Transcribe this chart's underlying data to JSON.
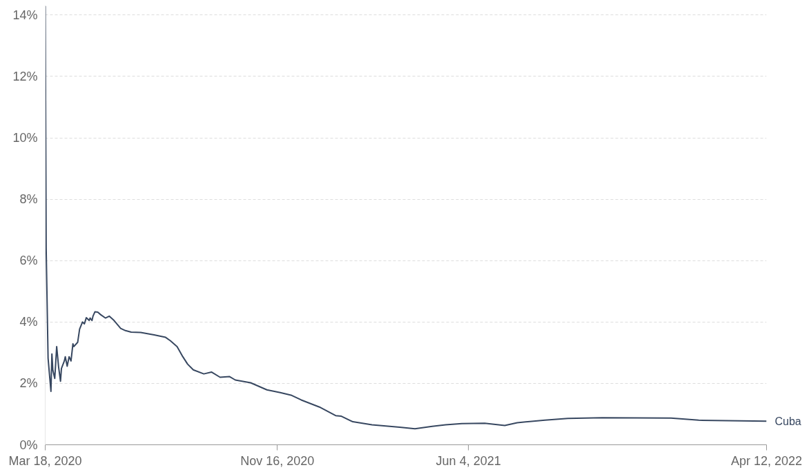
{
  "chart_data": {
    "type": "line",
    "xlim": [
      "2020-03-18",
      "2022-04-12"
    ],
    "ylim": [
      0,
      14.3
    ],
    "xticks": [
      {
        "value": "2020-03-18",
        "label": "Mar 18, 2020"
      },
      {
        "value": "2020-11-16",
        "label": "Nov 16, 2020"
      },
      {
        "value": "2021-06-04",
        "label": "Jun 4, 2021"
      },
      {
        "value": "2022-04-12",
        "label": "Apr 12, 2022"
      }
    ],
    "yticks": [
      {
        "value": 0,
        "label": "0%"
      },
      {
        "value": 2,
        "label": "2%"
      },
      {
        "value": 4,
        "label": "4%"
      },
      {
        "value": 6,
        "label": "6%"
      },
      {
        "value": 8,
        "label": "8%"
      },
      {
        "value": 10,
        "label": "10%"
      },
      {
        "value": 12,
        "label": "12%"
      },
      {
        "value": 14,
        "label": "14%"
      }
    ],
    "grid": "y",
    "marker": "none",
    "line_style": "solid",
    "x": [
      "2020-03-18",
      "2020-03-19",
      "2020-03-21",
      "2020-03-24",
      "2020-03-25",
      "2020-03-26",
      "2020-03-28",
      "2020-03-30",
      "2020-04-01",
      "2020-04-03",
      "2020-04-04",
      "2020-04-07",
      "2020-04-08",
      "2020-04-10",
      "2020-04-12",
      "2020-04-14",
      "2020-04-16",
      "2020-04-17",
      "2020-04-21",
      "2020-04-23",
      "2020-04-26",
      "2020-04-28",
      "2020-04-30",
      "2020-05-03",
      "2020-05-04",
      "2020-05-06",
      "2020-05-07",
      "2020-05-09",
      "2020-05-12",
      "2020-05-15",
      "2020-05-20",
      "2020-05-24",
      "2020-05-29",
      "2020-06-05",
      "2020-06-10",
      "2020-06-16",
      "2020-06-26",
      "2020-07-10",
      "2020-07-22",
      "2020-07-27",
      "2020-08-03",
      "2020-08-09",
      "2020-08-14",
      "2020-08-20",
      "2020-08-31",
      "2020-09-08",
      "2020-09-17",
      "2020-09-27",
      "2020-10-03",
      "2020-10-19",
      "2020-11-05",
      "2020-11-19",
      "2020-12-01",
      "2020-12-11",
      "2020-12-30",
      "2021-01-16",
      "2021-01-22",
      "2021-02-03",
      "2021-02-23",
      "2021-03-24",
      "2021-04-09",
      "2021-04-27",
      "2021-05-11",
      "2021-05-28",
      "2021-06-21",
      "2021-07-12",
      "2021-07-25",
      "2021-08-23",
      "2021-09-16",
      "2021-10-22",
      "2022-01-02",
      "2022-01-31",
      "2022-04-12"
    ],
    "series": [
      {
        "name": "Cuba",
        "color": "#374760",
        "values": [
          14.3,
          6.4,
          2.82,
          1.74,
          2.96,
          2.43,
          2.16,
          3.2,
          2.54,
          2.07,
          2.49,
          2.73,
          2.87,
          2.56,
          2.87,
          2.73,
          3.29,
          3.2,
          3.34,
          3.77,
          4.0,
          3.94,
          4.14,
          4.05,
          4.13,
          4.05,
          4.19,
          4.33,
          4.32,
          4.24,
          4.13,
          4.19,
          4.05,
          3.79,
          3.72,
          3.67,
          3.66,
          3.58,
          3.5,
          3.39,
          3.2,
          2.87,
          2.63,
          2.44,
          2.31,
          2.37,
          2.2,
          2.22,
          2.11,
          2.02,
          1.79,
          1.7,
          1.61,
          1.46,
          1.23,
          0.95,
          0.93,
          0.75,
          0.65,
          0.57,
          0.52,
          0.6,
          0.65,
          0.69,
          0.7,
          0.63,
          0.72,
          0.8,
          0.86,
          0.88,
          0.87,
          0.8,
          0.77
        ]
      }
    ]
  }
}
